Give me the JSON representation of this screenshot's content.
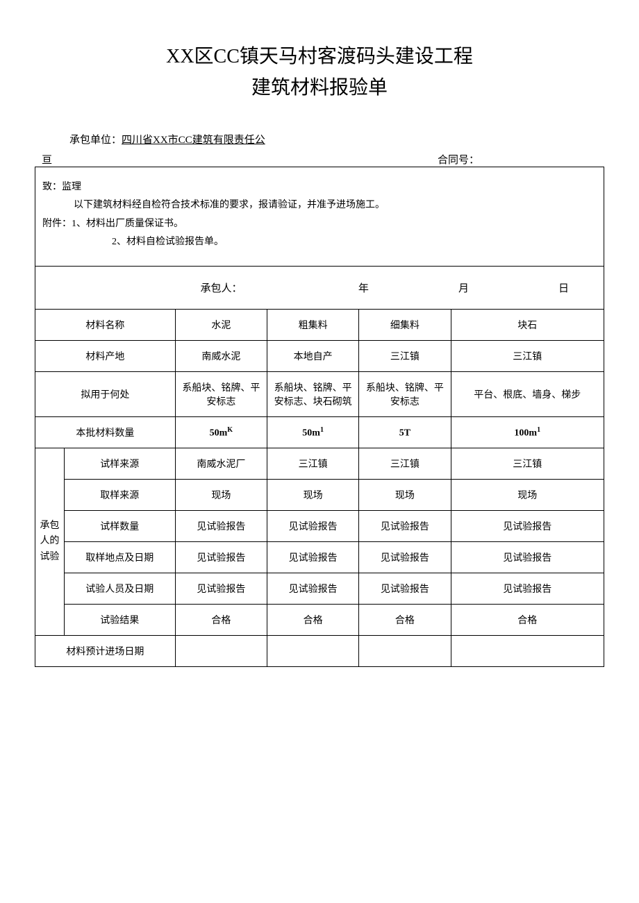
{
  "title": {
    "line1": "XX区CC镇天马村客渡码头建设工程",
    "line2": "建筑材料报验单"
  },
  "meta": {
    "contractor_label": "承包单位：",
    "contractor_value": "四川省XX市CC建筑有限责任公",
    "contractor_cont": "亘",
    "contract_no_label": "合同号："
  },
  "intro": {
    "to": "致：监理",
    "body": "以下建筑材料经自检符合技术标准的要求，报请验证，并准予进场施工。",
    "attach_label": "附件：1、材料出厂质量保证书。",
    "attach2": "2、材料自检试验报告单。"
  },
  "sign": {
    "contractor": "承包人：",
    "year": "年",
    "month": "月",
    "day": "日"
  },
  "table": {
    "rows": {
      "material_name": "材料名称",
      "material_origin": "材料产地",
      "intended_use": "拟用于何处",
      "batch_qty": "本批材料数量",
      "sample_source": "试样来源",
      "sampling_source": "取样来源",
      "sample_qty": "试样数量",
      "sample_loc_date": "取样地点及日期",
      "tester_date": "试验人员及日期",
      "test_result": "试验结果",
      "expected_date": "材料预计进场日期"
    },
    "rowgroup_label": "承包人的试验",
    "cols": {
      "c1": {
        "name": "水泥",
        "origin": "南威水泥",
        "use": "系船块、铭牌、平安标志",
        "qty": "50m",
        "qty_sup": "K",
        "sample_source": "南威水泥厂",
        "sampling_source": "现场",
        "sample_qty": "见试验报告",
        "sample_loc_date": "见试验报告",
        "tester_date": "见试验报告",
        "result": "合格"
      },
      "c2": {
        "name": "粗集料",
        "origin": "本地自产",
        "use": "系船块、铭牌、平安标志、块石砌筑",
        "qty": "50m",
        "qty_sup": "1",
        "sample_source": "三江镇",
        "sampling_source": "现场",
        "sample_qty": "见试验报告",
        "sample_loc_date": "见试验报告",
        "tester_date": "见试验报告",
        "result": "合格"
      },
      "c3": {
        "name": "细集料",
        "origin": "三江镇",
        "use": "系船块、铭牌、平安标志",
        "qty": "5T",
        "qty_sup": "",
        "sample_source": "三江镇",
        "sampling_source": "现场",
        "sample_qty": "见试验报告",
        "sample_loc_date": "见试验报告",
        "tester_date": "见试验报告",
        "result": "合格"
      },
      "c4": {
        "name": "块石",
        "origin": "三江镇",
        "use": "平台、根底、墙身、梯步",
        "qty": "100m",
        "qty_sup": "1",
        "sample_source": "三江镇",
        "sampling_source": "现场",
        "sample_qty": "见试验报告",
        "sample_loc_date": "见试验报告",
        "tester_date": "见试验报告",
        "result": "合格"
      }
    }
  },
  "styling": {
    "background_color": "#ffffff",
    "text_color": "#000000",
    "border_color": "#000000",
    "title_fontsize": 28,
    "body_fontsize": 14,
    "font_family": "SimSun"
  }
}
